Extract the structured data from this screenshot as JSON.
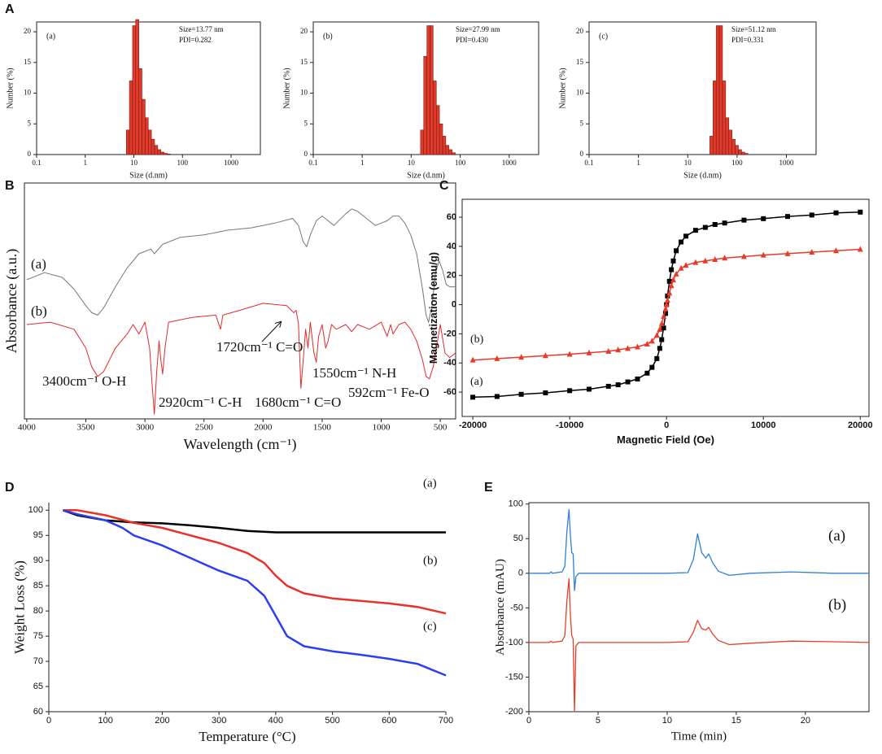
{
  "panel_labels": [
    "A",
    "B",
    "C",
    "D",
    "E"
  ],
  "chart_data": [
    {
      "type": "histogram",
      "xscale": "log",
      "xlabel": "Size (d.nm)",
      "ylabel": "Number (%)",
      "xlim": [
        0.1,
        4000
      ],
      "ylim": [
        0,
        21.6
      ],
      "xticks": [
        0.1,
        1,
        10,
        100,
        1000
      ],
      "yticks": [
        0,
        5,
        10,
        15,
        20
      ],
      "color": "#e03a2a",
      "grid": false,
      "annotations": [
        "(a)",
        "Size=13.77 nm",
        "PDI=0.282"
      ],
      "bins": [
        7.0,
        8.1,
        9.4,
        10.9,
        12.7,
        14.7,
        17.1,
        19.8,
        23.0,
        26.7,
        31.0,
        36.0,
        41.8,
        48.5,
        56.3
      ],
      "values": [
        4,
        12,
        21,
        22,
        14,
        9,
        6,
        4,
        2.5,
        1.5,
        0.8,
        0.4,
        0.2,
        0.1
      ]
    },
    {
      "type": "histogram",
      "xscale": "log",
      "xlabel": "Size (d.nm)",
      "ylabel": "Number (%)",
      "xlim": [
        0.1,
        4000
      ],
      "ylim": [
        0,
        21.6
      ],
      "xticks": [
        0.1,
        1,
        10,
        100,
        1000
      ],
      "yticks": [
        0,
        5,
        10,
        15,
        20
      ],
      "color": "#e03a2a",
      "grid": false,
      "annotations": [
        "(b)",
        "Size=27.99 nm",
        "PDI=0.430"
      ],
      "bins": [
        15.5,
        18,
        20.9,
        24.2,
        28.1,
        32.6,
        37.8,
        43.9,
        50.9,
        59,
        68.5,
        79.5
      ],
      "values": [
        4,
        16,
        21,
        21,
        12,
        8,
        5,
        3,
        1.5,
        0.8,
        0.3
      ]
    },
    {
      "type": "histogram",
      "xscale": "log",
      "xlabel": "Size (d.nm)",
      "ylabel": "Number (%)",
      "xlim": [
        0.1,
        4000
      ],
      "ylim": [
        0,
        21.6
      ],
      "xticks": [
        0.1,
        1,
        10,
        100,
        1000
      ],
      "yticks": [
        0,
        5,
        10,
        15,
        20
      ],
      "color": "#e03a2a",
      "grid": false,
      "annotations": [
        "(c)",
        "Size=51.12 nm",
        "PDI=0.331"
      ],
      "bins": [
        28,
        32.5,
        37.7,
        43.7,
        50.7,
        58.8,
        68.2,
        79.1,
        91.8,
        106.5,
        123.5,
        143.3,
        166
      ],
      "values": [
        3,
        12,
        21,
        21,
        12,
        6,
        4,
        2.5,
        1.5,
        0.8,
        0.4,
        0.2
      ]
    },
    {
      "type": "line",
      "xlabel": "Wavelength (cm⁻¹)",
      "ylabel": "Absorbance (a.u.)",
      "xlim": [
        4020,
        370
      ],
      "ylim": [
        0,
        100
      ],
      "xticks": [
        4000,
        3500,
        3000,
        2500,
        2000,
        1500,
        1000,
        500
      ],
      "grid": false,
      "annotations": [
        "(a)",
        "(b)",
        "3400cm⁻¹ O-H",
        "2920cm⁻¹ C-H",
        "1720cm⁻¹ C=O",
        "1550cm⁻¹ N-H",
        "1680cm⁻¹ C=O",
        "592cm⁻¹ Fe-O"
      ],
      "series": [
        {
          "color": "#777777",
          "x": [
            4000,
            3850,
            3700,
            3600,
            3500,
            3450,
            3400,
            3350,
            3250,
            3150,
            3050,
            2950,
            2920,
            2850,
            2700,
            2500,
            2300,
            2100,
            1900,
            1750,
            1700,
            1660,
            1630,
            1600,
            1550,
            1500,
            1450,
            1400,
            1300,
            1250,
            1200,
            1150,
            1100,
            1050,
            1000,
            950,
            900,
            850,
            800,
            750,
            700,
            650,
            620,
            600,
            570,
            540,
            510,
            480,
            450,
            420,
            370
          ],
          "values": [
            59,
            62,
            60,
            55,
            48,
            45,
            44,
            47,
            56,
            64,
            70,
            72,
            70,
            74,
            77,
            78,
            80,
            81,
            83,
            85,
            82,
            75,
            73,
            78,
            84,
            86,
            84,
            82,
            87,
            89,
            88,
            86,
            84,
            82,
            83,
            84,
            86,
            86,
            83,
            78,
            70,
            55,
            44,
            41,
            48,
            62,
            67,
            63,
            57,
            56,
            56
          ]
        },
        {
          "color": "#e62a2a",
          "x": [
            4000,
            3800,
            3600,
            3500,
            3450,
            3400,
            3350,
            3250,
            3150,
            3100,
            3050,
            3000,
            2960,
            2935,
            2920,
            2900,
            2880,
            2865,
            2850,
            2830,
            2800,
            2600,
            2400,
            2360,
            2340,
            2200,
            2000,
            1800,
            1740,
            1720,
            1700,
            1680,
            1660,
            1640,
            1620,
            1600,
            1570,
            1550,
            1530,
            1500,
            1470,
            1450,
            1420,
            1380,
            1300,
            1250,
            1200,
            1100,
            1000,
            950,
            920,
            900,
            850,
            800,
            750,
            700,
            650,
            620,
            592,
            560,
            530,
            500,
            460,
            420,
            370
          ],
          "values": [
            40,
            41,
            38,
            30,
            22,
            18,
            20,
            30,
            36,
            40,
            36,
            41,
            30,
            12,
            2,
            20,
            33,
            25,
            19,
            30,
            41,
            43,
            44,
            38,
            44,
            46,
            49,
            48,
            45,
            46,
            40,
            13,
            25,
            38,
            30,
            41,
            28,
            24,
            35,
            40,
            30,
            33,
            40,
            38,
            40,
            37,
            40,
            38,
            41,
            35,
            40,
            36,
            40,
            41,
            38,
            33,
            25,
            18,
            17,
            22,
            31,
            40,
            28,
            26,
            28
          ]
        }
      ]
    },
    {
      "type": "line",
      "xlabel": "Magnetic Field (Oe)",
      "ylabel": "Magnetization (emu/g)",
      "xlim": [
        -21100,
        20900
      ],
      "ylim": [
        -76.7,
        72.3
      ],
      "xticks": [
        -20000,
        -10000,
        0,
        10000,
        20000
      ],
      "yticks": [
        -60,
        -40,
        -20,
        0,
        20,
        40,
        60
      ],
      "grid": false,
      "annotations": [
        "(b)",
        "(a)"
      ],
      "x": [
        -20000,
        -17500,
        -15000,
        -12500,
        -10000,
        -8000,
        -6000,
        -5000,
        -4000,
        -3000,
        -2000,
        -1500,
        -1000,
        -700,
        -500,
        -300,
        -100,
        0,
        100,
        300,
        500,
        700,
        1000,
        1500,
        2000,
        3000,
        4000,
        5000,
        6000,
        8000,
        10000,
        12500,
        15000,
        17500,
        20000
      ],
      "series": [
        {
          "color": "#000000",
          "marker": "square",
          "values": [
            -63.5,
            -63,
            -61.5,
            -60.5,
            -59,
            -58,
            -56,
            -55,
            -53,
            -51,
            -47,
            -43,
            -37,
            -30,
            -24,
            -16,
            -6,
            0,
            6,
            16,
            24,
            30,
            37,
            43,
            47,
            51,
            53,
            55,
            56,
            58,
            59,
            60.5,
            61.5,
            63,
            63.5
          ]
        },
        {
          "color": "#e8392a",
          "marker": "triangle",
          "values": [
            -38,
            -37,
            -36,
            -35,
            -34,
            -33,
            -32,
            -31,
            -30,
            -29,
            -27,
            -25,
            -21,
            -17,
            -13,
            -8,
            -3,
            0,
            3,
            8,
            13,
            17,
            21,
            25,
            27,
            29,
            30,
            31,
            32,
            33,
            34,
            35,
            36,
            37,
            38
          ]
        }
      ]
    },
    {
      "type": "line",
      "xlabel": "Temperature (°C)",
      "ylabel": "Weight Loss (%)",
      "xlim": [
        0,
        700
      ],
      "ylim": [
        60,
        101.5
      ],
      "xticks": [
        0,
        100,
        200,
        300,
        400,
        500,
        600,
        700
      ],
      "yticks": [
        60,
        65,
        70,
        75,
        80,
        85,
        90,
        95,
        100
      ],
      "grid": false,
      "annotations": [
        "(a)",
        "(b)",
        "(c)"
      ],
      "series": [
        {
          "color": "#000000",
          "x": [
            25,
            50,
            100,
            150,
            200,
            250,
            300,
            350,
            400,
            450,
            700
          ],
          "values": [
            100,
            99,
            98,
            97.6,
            97.4,
            97,
            96.5,
            95.9,
            95.6,
            95.6,
            95.6
          ]
        },
        {
          "color": "#e8312a",
          "x": [
            25,
            50,
            100,
            150,
            200,
            250,
            300,
            350,
            380,
            400,
            420,
            450,
            500,
            550,
            600,
            650,
            700
          ],
          "values": [
            100,
            100,
            99,
            97.5,
            96.5,
            95,
            93.5,
            91.5,
            89.5,
            87,
            85,
            83.5,
            82.5,
            82,
            81.5,
            80.8,
            79.5
          ]
        },
        {
          "color": "#2a3ff0",
          "x": [
            25,
            50,
            100,
            130,
            150,
            200,
            250,
            300,
            350,
            380,
            400,
            420,
            450,
            500,
            550,
            600,
            650,
            700
          ],
          "values": [
            100,
            99.2,
            98,
            96.5,
            95,
            93,
            90.5,
            88,
            86,
            83,
            79,
            75,
            73,
            72,
            71.3,
            70.5,
            69.5,
            67.2
          ]
        }
      ]
    },
    {
      "type": "line",
      "xlabel": "Time (min)",
      "ylabel": "Absorbance (mAU)",
      "xlim": [
        0,
        24.6
      ],
      "ylim": [
        -200,
        102
      ],
      "xticks": [
        0,
        5,
        10,
        15,
        20
      ],
      "yticks": [
        -200,
        -150,
        -100,
        -50,
        0,
        50,
        100
      ],
      "grid": false,
      "annotations": [
        "(a)",
        "(b)"
      ],
      "x": [
        0,
        1.5,
        1.6,
        1.7,
        2.4,
        2.6,
        2.75,
        2.9,
        3.0,
        3.1,
        3.2,
        3.3,
        3.4,
        3.6,
        4,
        5,
        10,
        11.5,
        11.9,
        12.2,
        12.5,
        12.8,
        13.0,
        13.3,
        13.7,
        14.5,
        16,
        19,
        22,
        24.6
      ],
      "series": [
        {
          "color": "#2f7fd8",
          "values": [
            0,
            0,
            2,
            0,
            2,
            10,
            60,
            92,
            55,
            30,
            28,
            -25,
            -5,
            0,
            0,
            0,
            0,
            1,
            20,
            57,
            30,
            22,
            28,
            15,
            3,
            -3,
            0,
            2,
            0,
            0
          ]
        },
        {
          "color": "#e0412b",
          "values": [
            -100,
            -100,
            -98,
            -100,
            -98,
            -90,
            -40,
            -8,
            -60,
            -90,
            -95,
            -200,
            -105,
            -100,
            -100,
            -100,
            -100,
            -99,
            -85,
            -68,
            -80,
            -82,
            -78,
            -88,
            -97,
            -103,
            -101,
            -98,
            -99,
            -100
          ]
        }
      ]
    }
  ]
}
